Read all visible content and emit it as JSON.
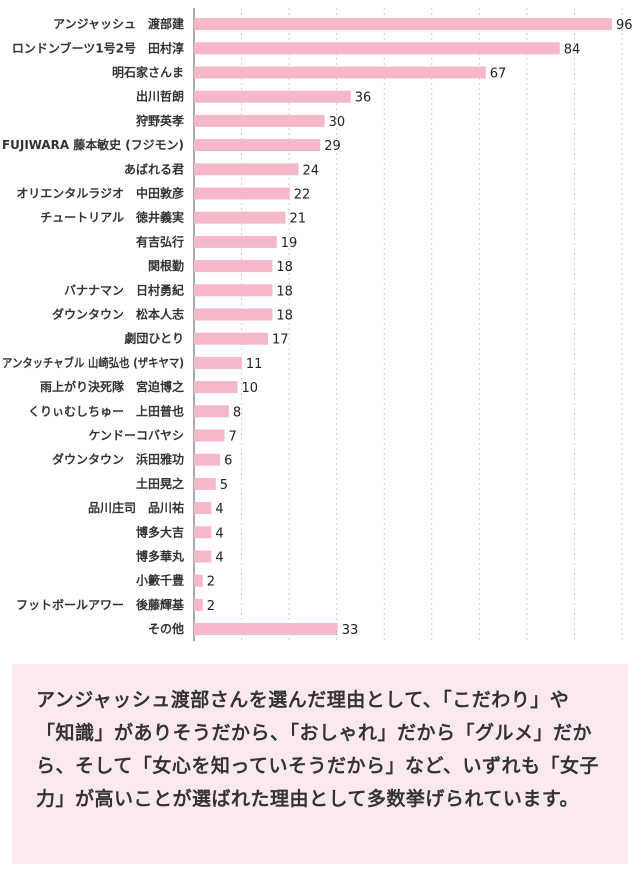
{
  "chart_data": {
    "type": "bar",
    "orientation": "horizontal",
    "categories": [
      "アンジャッシュ　渡部建",
      "ロンドンブーツ1号2号　田村淳",
      "明石家さんま",
      "出川哲朗",
      "狩野英孝",
      "FUJIWARA 藤本敏史 (フジモン)",
      "あばれる君",
      "オリエンタルラジオ　中田敦彦",
      "チュートリアル　徳井義実",
      "有吉弘行",
      "関根勤",
      "バナナマン　日村勇紀",
      "ダウンタウン　松本人志",
      "劇団ひとり",
      "アンタッチャブル 山崎弘也 (ザキヤマ)",
      "雨上がり決死隊　宮迫博之",
      "くりぃむしちゅー　上田普也",
      "ケンドーコバヤシ",
      "ダウンタウン　浜田雅功",
      "土田晃之",
      "品川庄司　品川祐",
      "博多大吉",
      "博多華丸",
      "小籔千豊",
      "フットボールアワー　後藤輝基",
      "その他"
    ],
    "values": [
      96,
      84,
      67,
      36,
      30,
      29,
      24,
      22,
      21,
      19,
      18,
      18,
      18,
      17,
      11,
      10,
      8,
      7,
      6,
      5,
      4,
      4,
      4,
      2,
      2,
      33
    ],
    "xlim": [
      0,
      96
    ],
    "grid": true,
    "bar_color": "#f4b8c8",
    "title": "",
    "xlabel": "",
    "ylabel": ""
  },
  "note": {
    "text": "アンジャッシュ渡部さんを選んだ理由として、「こだわり」や「知識」がありそうだから、「おしゃれ」だから「グルメ」だから、そして「女心を知っていそうだから」など、いずれも「女子力」が高いことが選ばれた理由として多数挙げられています。",
    "background": "#fbe9ee"
  }
}
